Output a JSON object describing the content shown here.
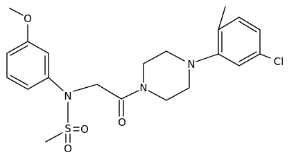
{
  "atoms": [
    {
      "label": "O"
    },
    {
      "label": "N"
    },
    {
      "label": "S"
    },
    {
      "label": "O"
    },
    {
      "label": "O"
    },
    {
      "label": "O"
    },
    {
      "label": "N"
    },
    {
      "label": "N"
    },
    {
      "label": "Cl"
    }
  ]
}
